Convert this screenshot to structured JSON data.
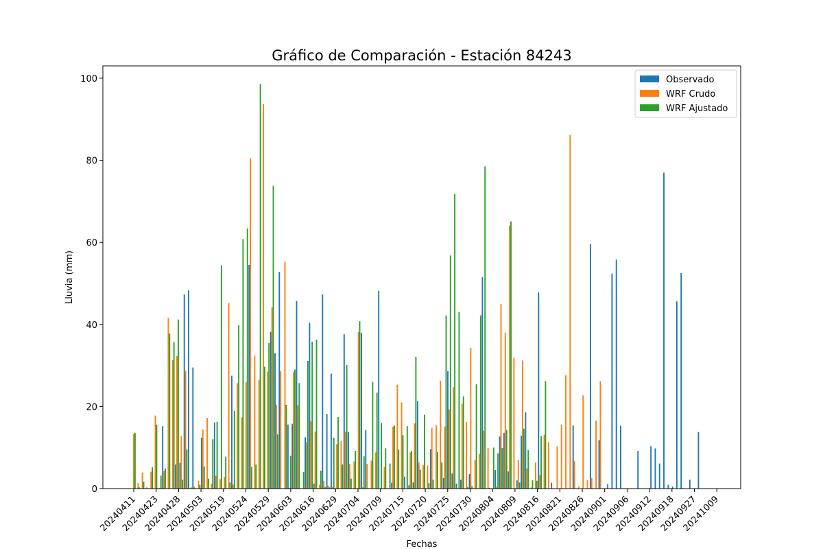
{
  "chart_data": {
    "type": "bar",
    "title": "Gráfico de Comparación - Estación 84243",
    "xlabel": "Fechas",
    "ylabel": "Lluvia (mm)",
    "ylim": [
      0,
      103
    ],
    "yticks": [
      0,
      20,
      40,
      60,
      80,
      100
    ],
    "grid": false,
    "legend_position": "top-right",
    "x_tick_labels": [
      "20240411",
      "20240423",
      "20240428",
      "20240503",
      "20240519",
      "20240524",
      "20240529",
      "20240603",
      "20240616",
      "20240629",
      "20240704",
      "20240709",
      "20240715",
      "20240720",
      "20240725",
      "20240730",
      "20240804",
      "20240809",
      "20240816",
      "20240821",
      "20240826",
      "20240901",
      "20240906",
      "20240912",
      "20240918",
      "20240927",
      "20241009"
    ],
    "n_categories": 134,
    "series": [
      {
        "name": "Observado",
        "color": "#1f77b4",
        "values": [
          0,
          0,
          0,
          0,
          0,
          0,
          0,
          15.2,
          0,
          0,
          5.9,
          6.3,
          47.3,
          48.3,
          29.5,
          0,
          12.4,
          0,
          0,
          16.1,
          0,
          0,
          0,
          27.5,
          0,
          0,
          0,
          54.5,
          0,
          0,
          0,
          0,
          38.2,
          33.0,
          52.8,
          0,
          15.6,
          15.8,
          45.7,
          0,
          12.5,
          40.4,
          1.2,
          0,
          47.3,
          18.2,
          28.0,
          0,
          0,
          37.6,
          13.8,
          0,
          0,
          38.0,
          14.3,
          0,
          0,
          48.2,
          0,
          0,
          1.4,
          0,
          0,
          2.9,
          0.8,
          1.5,
          21.3,
          0,
          0,
          9.6,
          0,
          0,
          2.6,
          28.6,
          3.7,
          1.2,
          2.2,
          0,
          3.5,
          0,
          0,
          51.5,
          0,
          0,
          4.5,
          12.7,
          13.6,
          4.2,
          0,
          2.0,
          12.9,
          18.6,
          0,
          0,
          47.8,
          0,
          0,
          1.4,
          0,
          0,
          0,
          0,
          15.4,
          0,
          0,
          0,
          59.6,
          0,
          11.8,
          0,
          1.1,
          52.4,
          55.8,
          15.3,
          0,
          0,
          0,
          9.2,
          0,
          0,
          10.3,
          9.8,
          6.1,
          77.0,
          0.9,
          0.5,
          45.6,
          52.5,
          0,
          2.2,
          0,
          13.8,
          0,
          0
        ]
      },
      {
        "name": "WRF Crudo",
        "color": "#ff7f0e",
        "values": [
          13.3,
          1.3,
          3.9,
          0.3,
          4.1,
          17.8,
          0.2,
          4.3,
          41.6,
          31.3,
          32.3,
          12.8,
          28.7,
          0,
          0.5,
          1.9,
          14.4,
          17.2,
          1.2,
          3.1,
          2.3,
          2.8,
          45.2,
          1.0,
          25.7,
          17.3,
          25.9,
          80.5,
          32.4,
          26.5,
          93.7,
          28.5,
          44.2,
          20.4,
          28.6,
          55.3,
          0.2,
          28.4,
          20.3,
          0,
          11.3,
          16.4,
          13.9,
          0.9,
          1.9,
          0.7,
          0.4,
          10.8,
          11.6,
          13.9,
          6.0,
          6.6,
          38.1,
          0.4,
          6.0,
          6.8,
          8.8,
          0,
          5.3,
          0,
          15.1,
          25.3,
          21.0,
          0,
          8.8,
          15.9,
          6.4,
          5.7,
          5.6,
          14.8,
          15.4,
          26.3,
          15.1,
          19.3,
          24.7,
          0,
          20.7,
          16.2,
          34.3,
          7.0,
          8.5,
          14.1,
          9.9,
          0,
          0.5,
          45.0,
          38.0,
          64.1,
          31.9,
          7.0,
          31.2,
          4.9,
          0.3,
          6.4,
          3.3,
          13.1,
          11.3,
          0.1,
          10.3,
          15.6,
          27.6,
          86.2,
          6.7,
          0.5,
          22.7,
          2.1,
          2.6,
          16.6,
          26.2,
          0,
          0,
          0,
          0,
          0,
          0,
          0,
          0,
          0,
          0,
          0,
          0,
          0,
          0,
          0,
          0,
          0,
          0,
          0,
          0,
          0,
          0,
          0,
          0,
          0
        ]
      },
      {
        "name": "WRF Ajustado",
        "color": "#2ca02c",
        "values": [
          13.6,
          0.3,
          1.7,
          0.1,
          5.2,
          15.6,
          3.2,
          4.9,
          37.8,
          35.7,
          41.2,
          2.2,
          9.5,
          0.3,
          0.1,
          0.9,
          5.4,
          2.4,
          12.0,
          16.3,
          54.4,
          7.8,
          1.5,
          18.9,
          39.8,
          60.8,
          63.4,
          5.3,
          5.9,
          98.6,
          29.7,
          35.5,
          73.8,
          13.2,
          0.1,
          20.4,
          8.0,
          29.0,
          25.7,
          4.0,
          31.1,
          35.8,
          36.3,
          4.4,
          0.4,
          0.3,
          12.4,
          17.4,
          5.9,
          30.1,
          2.4,
          9.2,
          40.8,
          7.9,
          0.1,
          26.0,
          23.4,
          16.0,
          9.8,
          6.1,
          15.4,
          9.5,
          13.0,
          15.2,
          9.2,
          32.1,
          4.6,
          18.0,
          1.3,
          2.2,
          8.9,
          6.4,
          42.2,
          56.8,
          71.8,
          43.0,
          22.5,
          0.4,
          0.6,
          25.4,
          42.2,
          78.5,
          0.2,
          10.0,
          8.6,
          9.9,
          14.3,
          65.1,
          0.1,
          1.5,
          14.6,
          9.4,
          2.1,
          1.9,
          12.8,
          26.2,
          0,
          0,
          0,
          0,
          0,
          0,
          0,
          0,
          0,
          0,
          0,
          0,
          0,
          0,
          0,
          0,
          0,
          0,
          0,
          0,
          0,
          0,
          0,
          0,
          0,
          0,
          0,
          0,
          0,
          0,
          0,
          0,
          0,
          0,
          0,
          0,
          0,
          0,
          0,
          0
        ]
      }
    ]
  }
}
